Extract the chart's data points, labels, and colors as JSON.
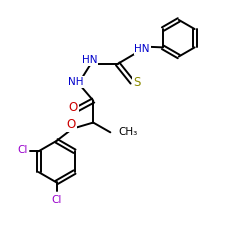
{
  "bg_color": "#ffffff",
  "atom_colors": {
    "C": "#000000",
    "N": "#0000cc",
    "O": "#cc0000",
    "S": "#8b8b00",
    "Cl": "#9900cc",
    "H": "#000000"
  },
  "bond_color": "#000000",
  "bond_width": 1.4,
  "figsize": [
    2.5,
    2.5
  ],
  "dpi": 100,
  "xlim": [
    0,
    10
  ],
  "ylim": [
    0,
    10
  ]
}
